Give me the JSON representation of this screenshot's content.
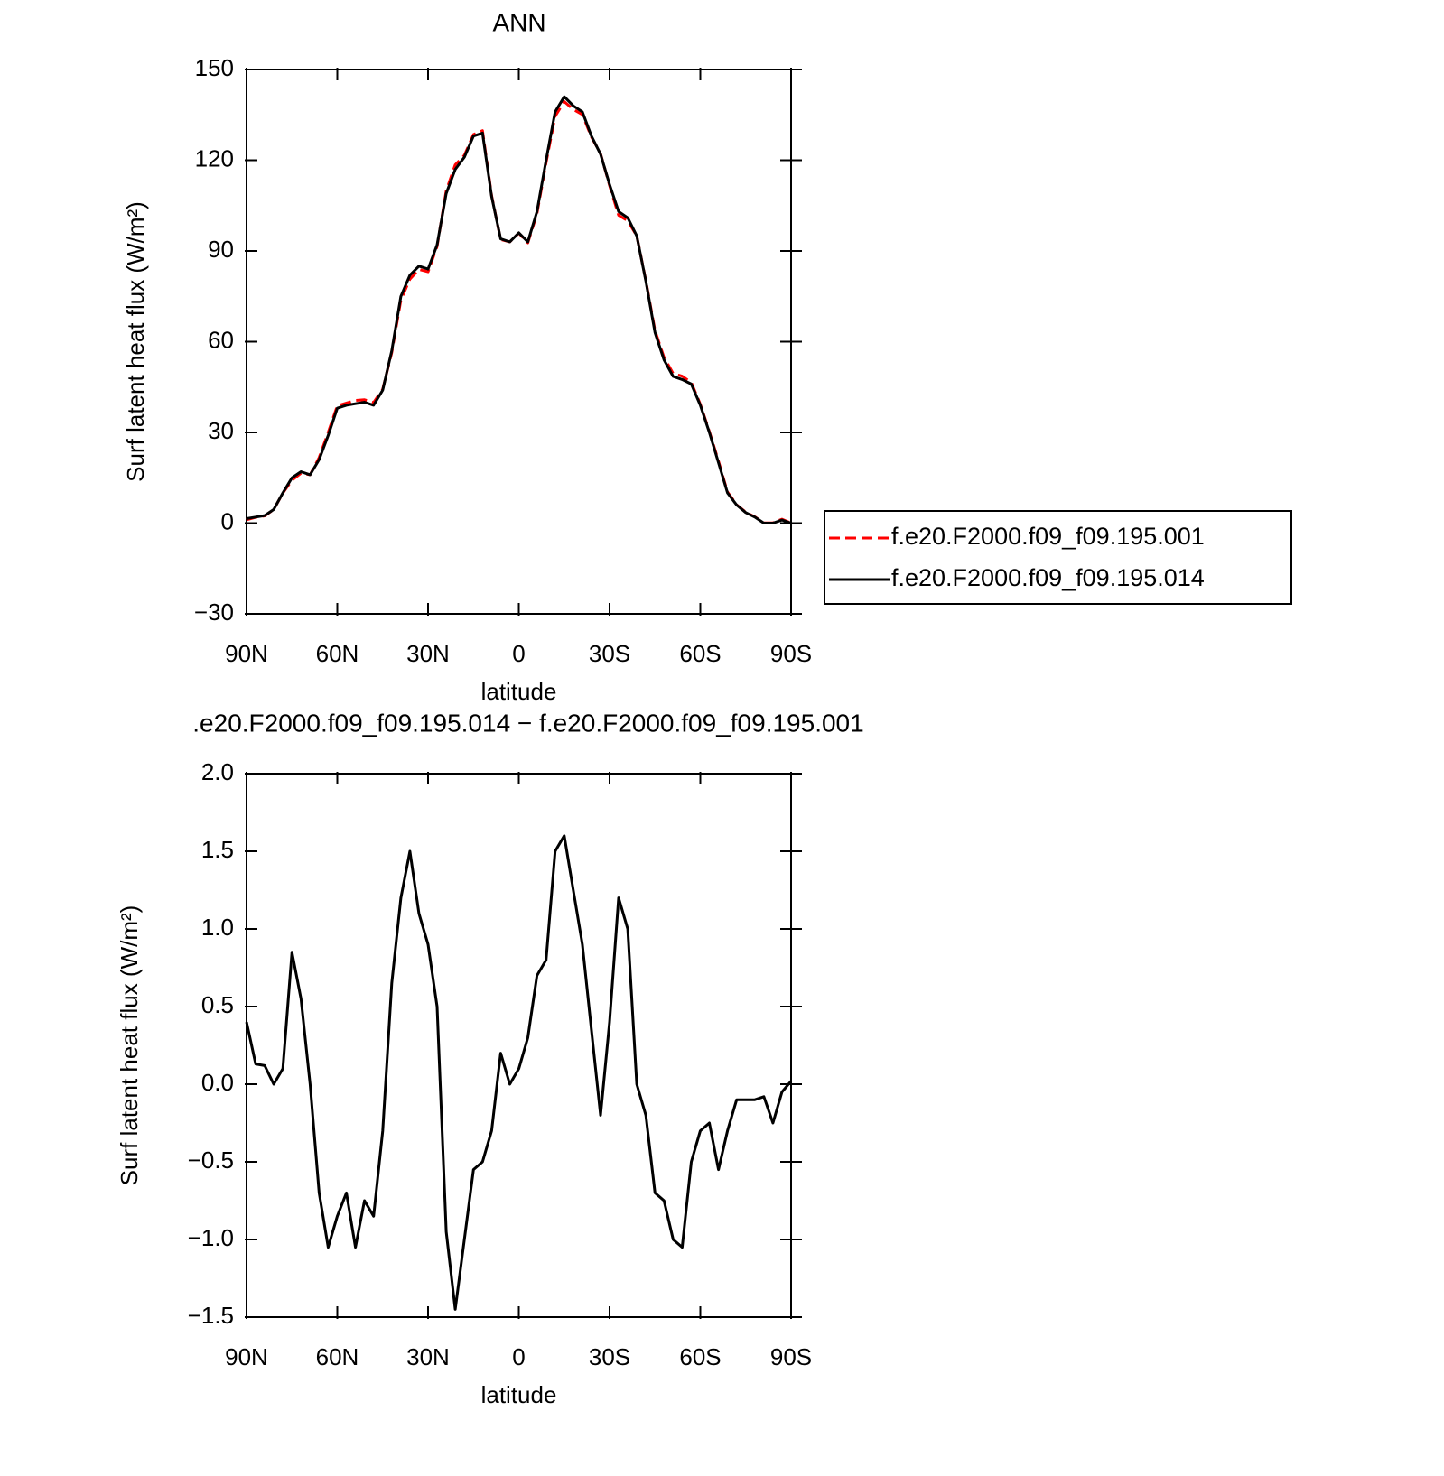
{
  "chart_data": [
    {
      "type": "line",
      "title": "ANN",
      "xlabel": "latitude",
      "ylabel": "Surf latent heat flux (W/m²)",
      "x": [
        90,
        87,
        84,
        81,
        78,
        75,
        72,
        69,
        66,
        63,
        60,
        57,
        54,
        51,
        48,
        45,
        42,
        39,
        36,
        33,
        30,
        27,
        24,
        21,
        18,
        15,
        12,
        9,
        6,
        3,
        0,
        -3,
        -6,
        -9,
        -12,
        -15,
        -18,
        -21,
        -24,
        -27,
        -30,
        -33,
        -36,
        -39,
        -42,
        -45,
        -48,
        -51,
        -54,
        -57,
        -60,
        -63,
        -66,
        -69,
        -72,
        -75,
        -78,
        -81,
        -84,
        -87,
        -90
      ],
      "xlim": [
        90,
        -90
      ],
      "xticks": [
        {
          "value": 90,
          "label": "90N"
        },
        {
          "value": 60,
          "label": "60N"
        },
        {
          "value": 30,
          "label": "30N"
        },
        0,
        {
          "value": -30,
          "label": "30S"
        },
        {
          "value": -60,
          "label": "60S"
        },
        {
          "value": -90,
          "label": "90S"
        }
      ],
      "ylim": [
        -30,
        150
      ],
      "yticks": [
        {
          "value": -30,
          "label": "−30"
        },
        0,
        30,
        60,
        90,
        120,
        150
      ],
      "legend": "right",
      "series": [
        {
          "name": "f.e20.F2000.f09_f09.195.001",
          "color": "#ff0000",
          "linestyle": "dashed",
          "values": [
            1.1,
            1.9,
            2.4,
            4.5,
            9.9,
            14.2,
            16.5,
            16,
            21.7,
            30,
            38.8,
            39.7,
            40.6,
            40.8,
            39.9,
            44.3,
            56.4,
            73.8,
            80.7,
            83.9,
            83.1,
            91.5,
            109.9,
            118.5,
            121.6,
            128.5,
            129.8,
            108.3,
            93.8,
            93,
            95.9,
            92.7,
            102.3,
            119.2,
            134.5,
            139.4,
            136.8,
            135.1,
            127.7,
            122.2,
            111.6,
            101.8,
            100,
            95,
            80.2,
            63.7,
            54.8,
            49.5,
            48.6,
            46.5,
            39.3,
            30.3,
            20.5,
            10.3,
            6.1,
            3.6,
            2.1,
            0.1,
            0.1,
            1.3,
            0
          ]
        },
        {
          "name": "f.e20.F2000.f09_f09.195.014",
          "color": "#000000",
          "linestyle": "solid",
          "values": [
            1.5,
            2,
            2.5,
            4.5,
            10,
            15,
            17,
            16,
            21,
            29,
            38,
            39,
            39.5,
            40,
            39,
            44,
            57,
            75,
            82,
            85,
            84,
            92,
            109,
            117,
            121,
            128,
            129,
            108,
            94,
            93,
            96,
            93,
            103,
            120,
            136,
            141,
            138,
            136,
            128,
            122,
            112,
            103,
            101,
            95,
            80,
            63,
            54,
            48.5,
            47.5,
            46,
            39,
            30,
            20,
            10,
            6,
            3.5,
            2,
            0,
            0,
            1,
            0
          ]
        }
      ]
    },
    {
      "type": "line",
      "title": ".e20.F2000.f09_f09.195.014 − f.e20.F2000.f09_f09.195.001",
      "xlabel": "latitude",
      "ylabel": "Surf latent heat flux (W/m²)",
      "x": [
        90,
        87,
        84,
        81,
        78,
        75,
        72,
        69,
        66,
        63,
        60,
        57,
        54,
        51,
        48,
        45,
        42,
        39,
        36,
        33,
        30,
        27,
        24,
        21,
        18,
        15,
        12,
        9,
        6,
        3,
        0,
        -3,
        -6,
        -9,
        -12,
        -15,
        -18,
        -21,
        -24,
        -27,
        -30,
        -33,
        -36,
        -39,
        -42,
        -45,
        -48,
        -51,
        -54,
        -57,
        -60,
        -63,
        -66,
        -69,
        -72,
        -75,
        -78,
        -81,
        -84,
        -87,
        -90
      ],
      "xlim": [
        90,
        -90
      ],
      "xticks": [
        {
          "value": 90,
          "label": "90N"
        },
        {
          "value": 60,
          "label": "60N"
        },
        {
          "value": 30,
          "label": "30N"
        },
        0,
        {
          "value": -30,
          "label": "30S"
        },
        {
          "value": -60,
          "label": "60S"
        },
        {
          "value": -90,
          "label": "90S"
        }
      ],
      "ylim": [
        -1.5,
        2.0
      ],
      "yticks": [
        {
          "value": -1.5,
          "label": "−1.5"
        },
        {
          "value": -1.0,
          "label": "−1.0"
        },
        {
          "value": -0.5,
          "label": "−0.5"
        },
        {
          "value": 0,
          "label": "0.0"
        },
        0.5,
        {
          "value": 1.0,
          "label": "1.0"
        },
        1.5,
        {
          "value": 2.0,
          "label": "2.0"
        }
      ],
      "color": "#000000",
      "values": [
        0.4,
        0.13,
        0.12,
        0.0,
        0.1,
        0.85,
        0.55,
        0.0,
        -0.7,
        -1.05,
        -0.85,
        -0.7,
        -1.05,
        -0.75,
        -0.85,
        -0.3,
        0.65,
        1.2,
        1.5,
        1.1,
        0.9,
        0.5,
        -0.95,
        -1.45,
        -1.0,
        -0.55,
        -0.5,
        -0.3,
        0.2,
        0.0,
        0.1,
        0.3,
        0.7,
        0.8,
        1.5,
        1.6,
        1.25,
        0.9,
        0.35,
        -0.2,
        0.4,
        1.2,
        1.0,
        0.0,
        -0.2,
        -0.7,
        -0.75,
        -1.0,
        -1.05,
        -0.5,
        -0.3,
        -0.25,
        -0.55,
        -0.3,
        -0.1,
        -0.1,
        -0.1,
        -0.08,
        -0.25,
        -0.05,
        0.02
      ]
    }
  ]
}
